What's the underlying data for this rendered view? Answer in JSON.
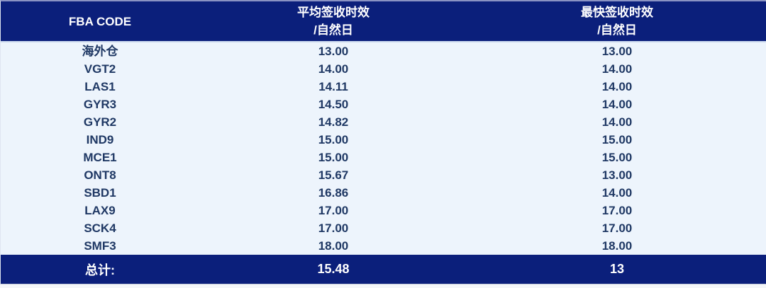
{
  "colors": {
    "header_bg": "#0B1F7B",
    "footer_bg": "#0B1F7B",
    "body_bg": "#EDF4FC",
    "body_text": "#1F3864",
    "header_text": "#FFFFFF"
  },
  "chart_data": {
    "type": "table",
    "title": "",
    "columns": [
      "FBA CODE",
      "平均签收时效\n/自然日",
      "最快签收时效\n/自然日"
    ],
    "rows": [
      [
        "海外仓",
        "13.00",
        "13.00"
      ],
      [
        "VGT2",
        "14.00",
        "14.00"
      ],
      [
        "LAS1",
        "14.11",
        "14.00"
      ],
      [
        "GYR3",
        "14.50",
        "14.00"
      ],
      [
        "GYR2",
        "14.82",
        "14.00"
      ],
      [
        "IND9",
        "15.00",
        "15.00"
      ],
      [
        "MCE1",
        "15.00",
        "15.00"
      ],
      [
        "ONT8",
        "15.67",
        "13.00"
      ],
      [
        "SBD1",
        "16.86",
        "14.00"
      ],
      [
        "LAX9",
        "17.00",
        "17.00"
      ],
      [
        "SCK4",
        "17.00",
        "17.00"
      ],
      [
        "SMF3",
        "18.00",
        "18.00"
      ]
    ],
    "total_row": [
      "总计:",
      "15.48",
      "13"
    ]
  }
}
